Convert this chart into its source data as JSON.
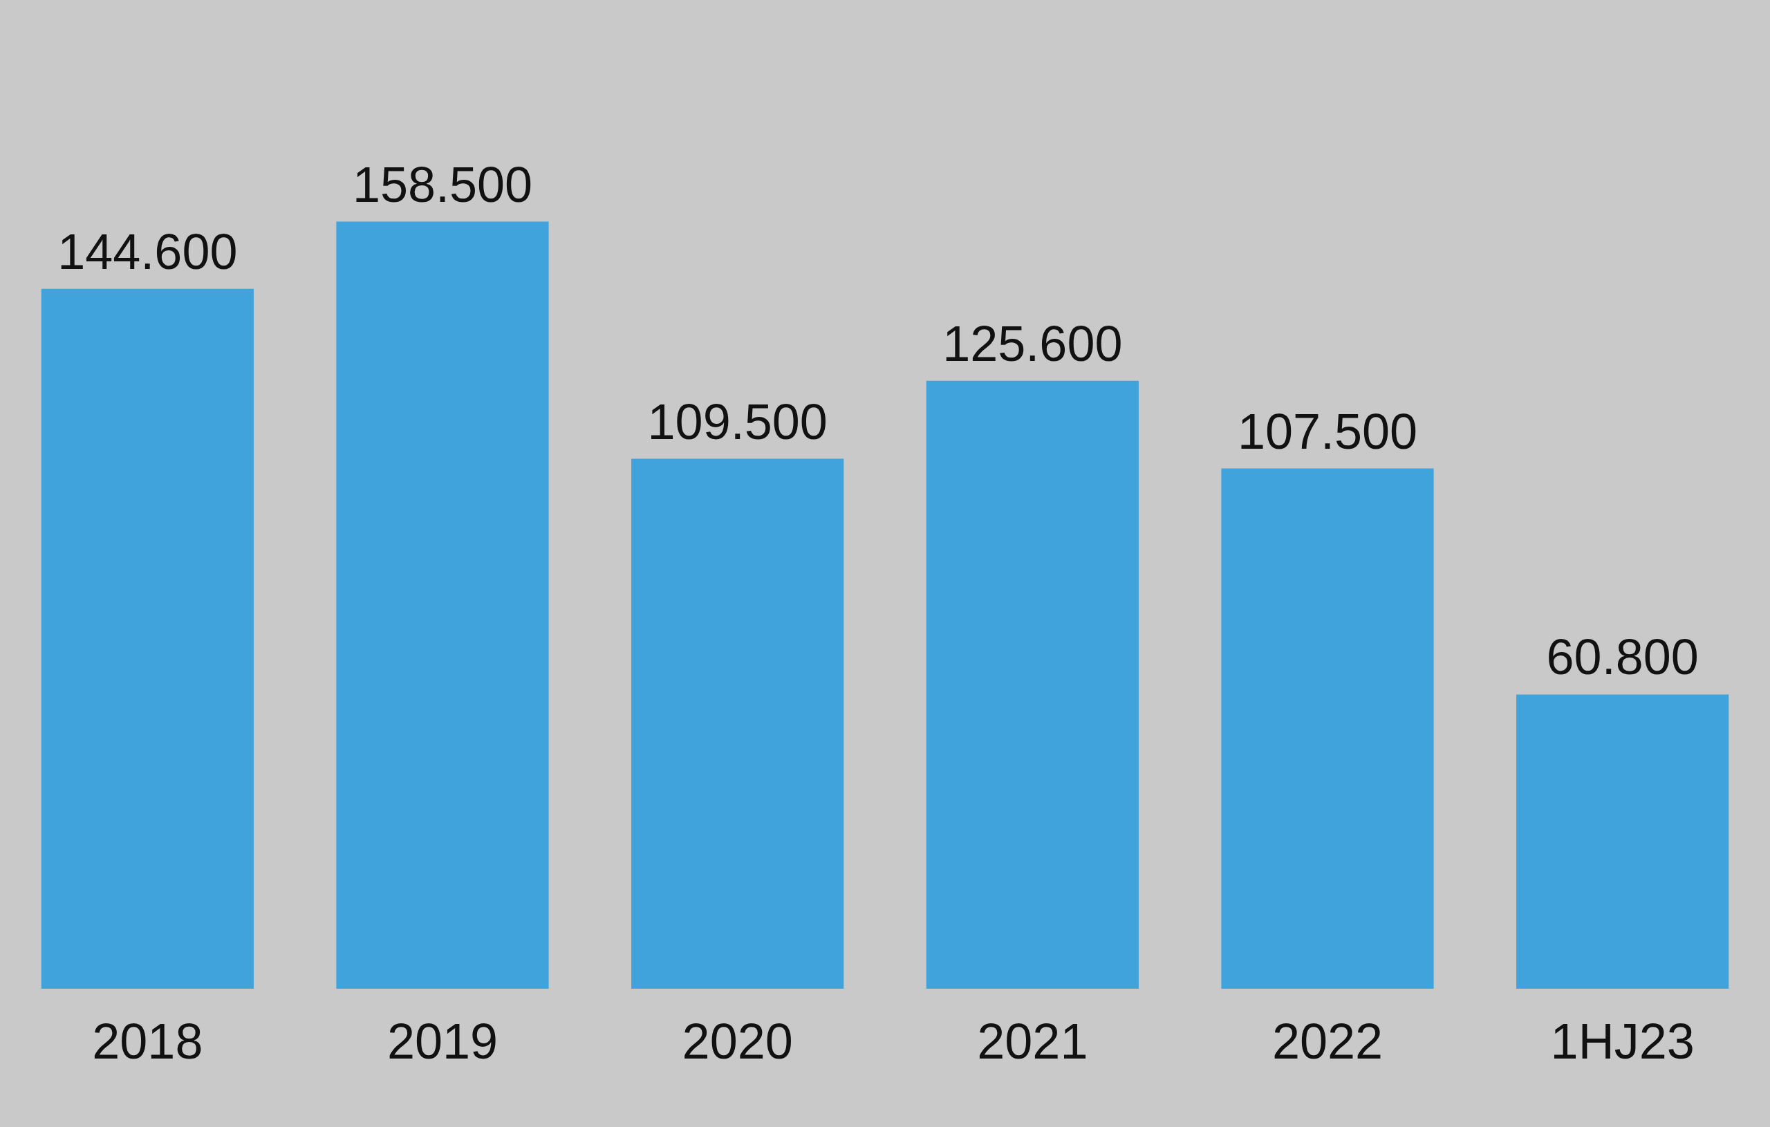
{
  "chart_data": {
    "type": "bar",
    "categories": [
      "2018",
      "2019",
      "2020",
      "2021",
      "2022",
      "1HJ23"
    ],
    "values": [
      144600,
      158500,
      109500,
      125600,
      107500,
      60800
    ],
    "value_labels": [
      "144.600",
      "158.500",
      "109.500",
      "125.600",
      "107.500",
      "60.800"
    ],
    "tick_labels": "x",
    "color": "#40a3db"
  }
}
